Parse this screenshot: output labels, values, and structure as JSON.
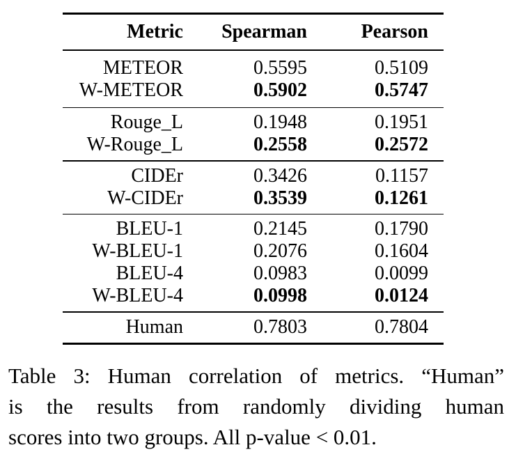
{
  "table": {
    "headers": {
      "metric": "Metric",
      "spearman": "Spearman",
      "pearson": "Pearson"
    },
    "groups": [
      {
        "rows": [
          {
            "metric": "METEOR",
            "spearman": "0.5595",
            "pearson": "0.5109",
            "bold": false
          },
          {
            "metric": "W-METEOR",
            "spearman": "0.5902",
            "pearson": "0.5747",
            "bold": true
          }
        ]
      },
      {
        "rows": [
          {
            "metric": "Rouge_L",
            "spearman": "0.1948",
            "pearson": "0.1951",
            "bold": false
          },
          {
            "metric": "W-Rouge_L",
            "spearman": "0.2558",
            "pearson": "0.2572",
            "bold": true
          }
        ]
      },
      {
        "rows": [
          {
            "metric": "CIDEr",
            "spearman": "0.3426",
            "pearson": "0.1157",
            "bold": false
          },
          {
            "metric": "W-CIDEr",
            "spearman": "0.3539",
            "pearson": "0.1261",
            "bold": true
          }
        ]
      },
      {
        "rows": [
          {
            "metric": "BLEU-1",
            "spearman": "0.2145",
            "pearson": "0.1790",
            "bold": false
          },
          {
            "metric": "W-BLEU-1",
            "spearman": "0.2076",
            "pearson": "0.1604",
            "bold": false
          },
          {
            "metric": "BLEU-4",
            "spearman": "0.0983",
            "pearson": "0.0099",
            "bold": false
          },
          {
            "metric": "W-BLEU-4",
            "spearman": "0.0998",
            "pearson": "0.0124",
            "bold": true
          }
        ]
      },
      {
        "rows": [
          {
            "metric": "Human",
            "spearman": "0.7803",
            "pearson": "0.7804",
            "bold": false
          }
        ]
      }
    ]
  },
  "caption": {
    "lines": [
      "Table 3: Human correlation of metrics. “Human”",
      "is the results from randomly dividing human",
      "scores into two groups. All p-value < 0.01."
    ]
  }
}
